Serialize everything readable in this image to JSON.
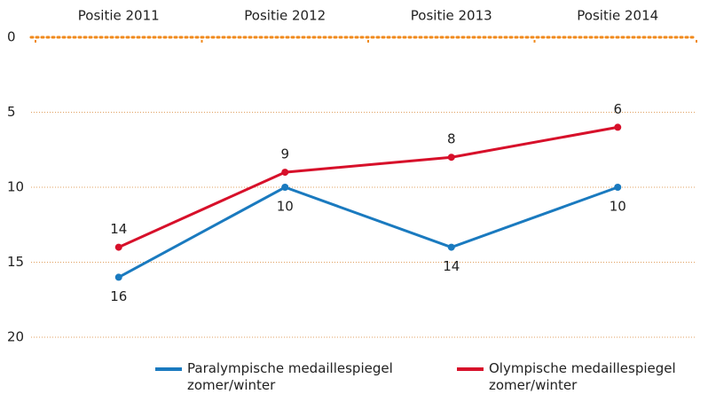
{
  "chart_data": {
    "type": "line",
    "categories": [
      "Positie 2011",
      "Positie 2012",
      "Positie 2013",
      "Positie 2014"
    ],
    "series": [
      {
        "name": "Paralympische medaillespiegel zomer/winter",
        "color": "#1a7abf",
        "values": [
          16,
          10,
          14,
          10
        ]
      },
      {
        "name": "Olympische medaillespiegel zomer/winter",
        "color": "#d7102a",
        "values": [
          14,
          9,
          8,
          6
        ]
      }
    ],
    "ylim": [
      0,
      20
    ],
    "yticks": [
      0,
      5,
      10,
      15,
      20
    ],
    "y_inverted": true,
    "grid": true,
    "axis_color": "#f08a1c",
    "legend": "bottom"
  }
}
